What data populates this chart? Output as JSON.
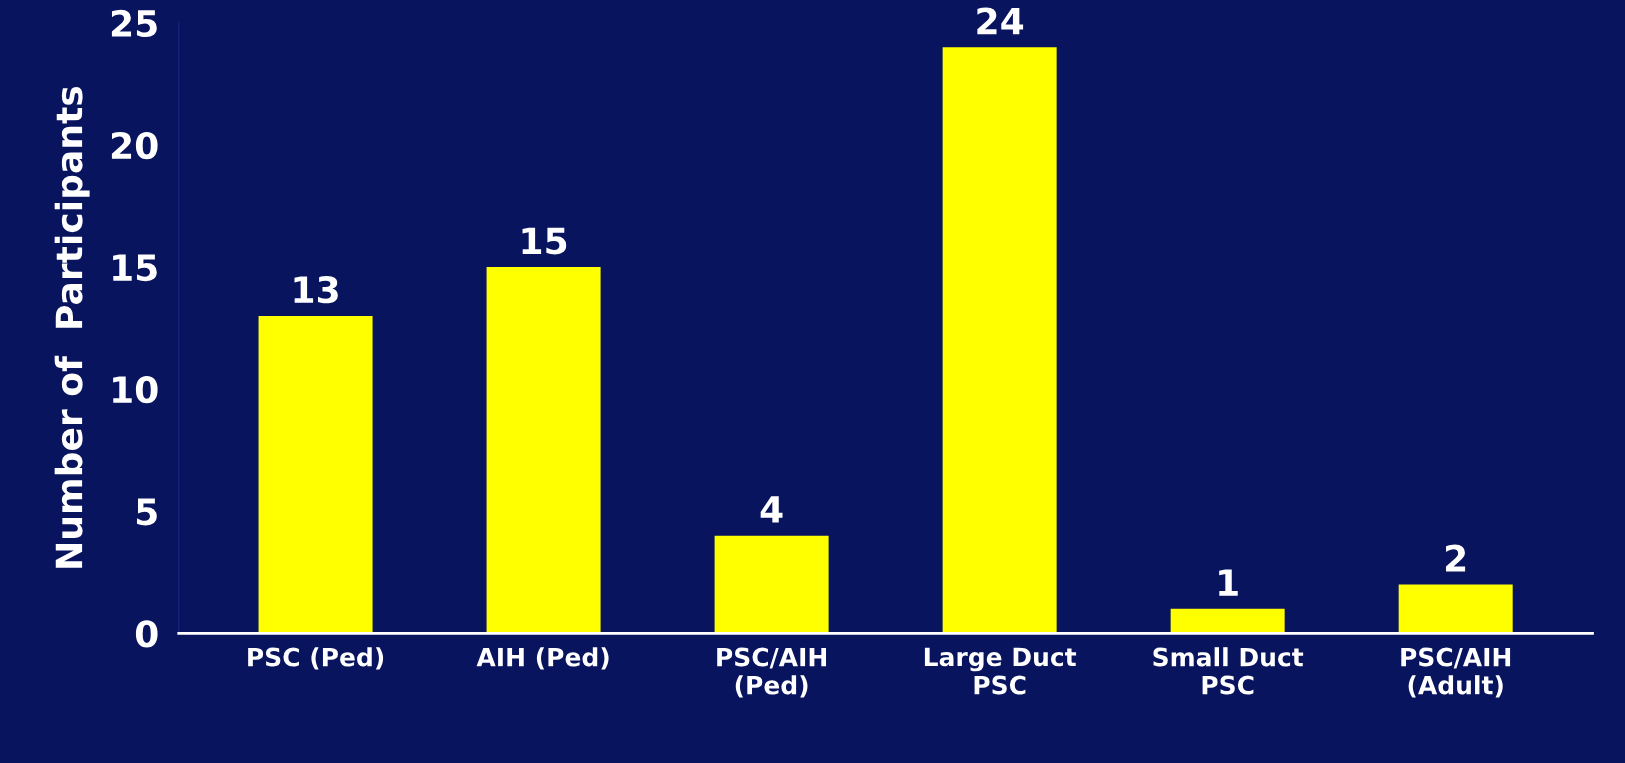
{
  "chart_data": {
    "type": "bar",
    "ylabel": "Number of  Participants",
    "categories": [
      "PSC (Ped)",
      "AIH (Ped)",
      "PSC/AIH\n(Ped)",
      "Large Duct\nPSC",
      "Small Duct\nPSC",
      "PSC/AIH\n(Adult)"
    ],
    "values": [
      13,
      15,
      4,
      24,
      1,
      2
    ],
    "color": "#ffff00",
    "ylim": [
      0,
      25
    ],
    "yticks": [
      0,
      5,
      10,
      15,
      20,
      25
    ],
    "grid": false,
    "data_labels": true
  }
}
